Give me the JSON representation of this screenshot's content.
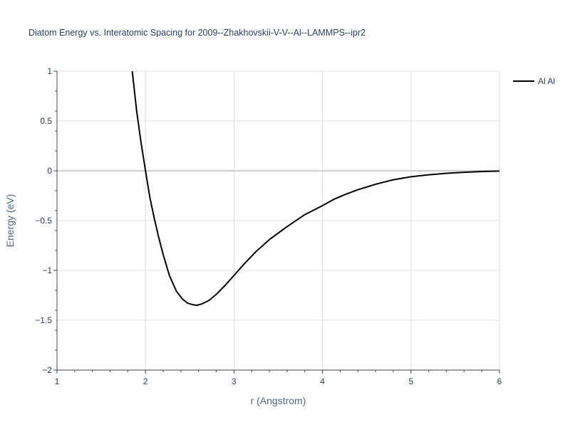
{
  "chart_data": {
    "type": "line",
    "title": "Diatom Energy vs. Interatomic Spacing for 2009--Zhakhovskii-V-V--Al--LAMMPS--ipr2",
    "xlabel": "r (Angstrom)",
    "ylabel": "Energy (eV)",
    "xlim": [
      1,
      6
    ],
    "ylim": [
      -2,
      1
    ],
    "x_ticks": [
      1,
      2,
      3,
      4,
      5,
      6
    ],
    "x_tick_labels": [
      "1",
      "2",
      "3",
      "4",
      "5",
      "6"
    ],
    "y_ticks": [
      1,
      0.5,
      0,
      -0.5,
      -1,
      -1.5,
      -2
    ],
    "y_tick_labels": [
      "1",
      "0.5",
      "0",
      "−0.5",
      "−1",
      "−1.5",
      "−2"
    ],
    "grid": true,
    "legend_position": "top-right",
    "series": [
      {
        "name": "Al Al",
        "color": "#000000",
        "x": [
          1.85,
          1.9,
          1.95,
          2.0,
          2.05,
          2.1,
          2.15,
          2.2,
          2.27,
          2.35,
          2.42,
          2.48,
          2.54,
          2.58,
          2.64,
          2.72,
          2.8,
          2.9,
          3.0,
          3.12,
          3.25,
          3.4,
          3.6,
          3.8,
          4.0,
          4.12,
          4.25,
          4.4,
          4.6,
          4.8,
          5.0,
          5.2,
          5.4,
          5.6,
          5.8,
          6.0
        ],
        "y": [
          1.0,
          0.6,
          0.28,
          0.0,
          -0.27,
          -0.48,
          -0.67,
          -0.84,
          -1.05,
          -1.21,
          -1.29,
          -1.33,
          -1.345,
          -1.35,
          -1.335,
          -1.3,
          -1.24,
          -1.15,
          -1.05,
          -0.93,
          -0.81,
          -0.69,
          -0.56,
          -0.44,
          -0.35,
          -0.29,
          -0.24,
          -0.19,
          -0.135,
          -0.09,
          -0.06,
          -0.04,
          -0.025,
          -0.015,
          -0.007,
          -0.003
        ]
      }
    ]
  }
}
